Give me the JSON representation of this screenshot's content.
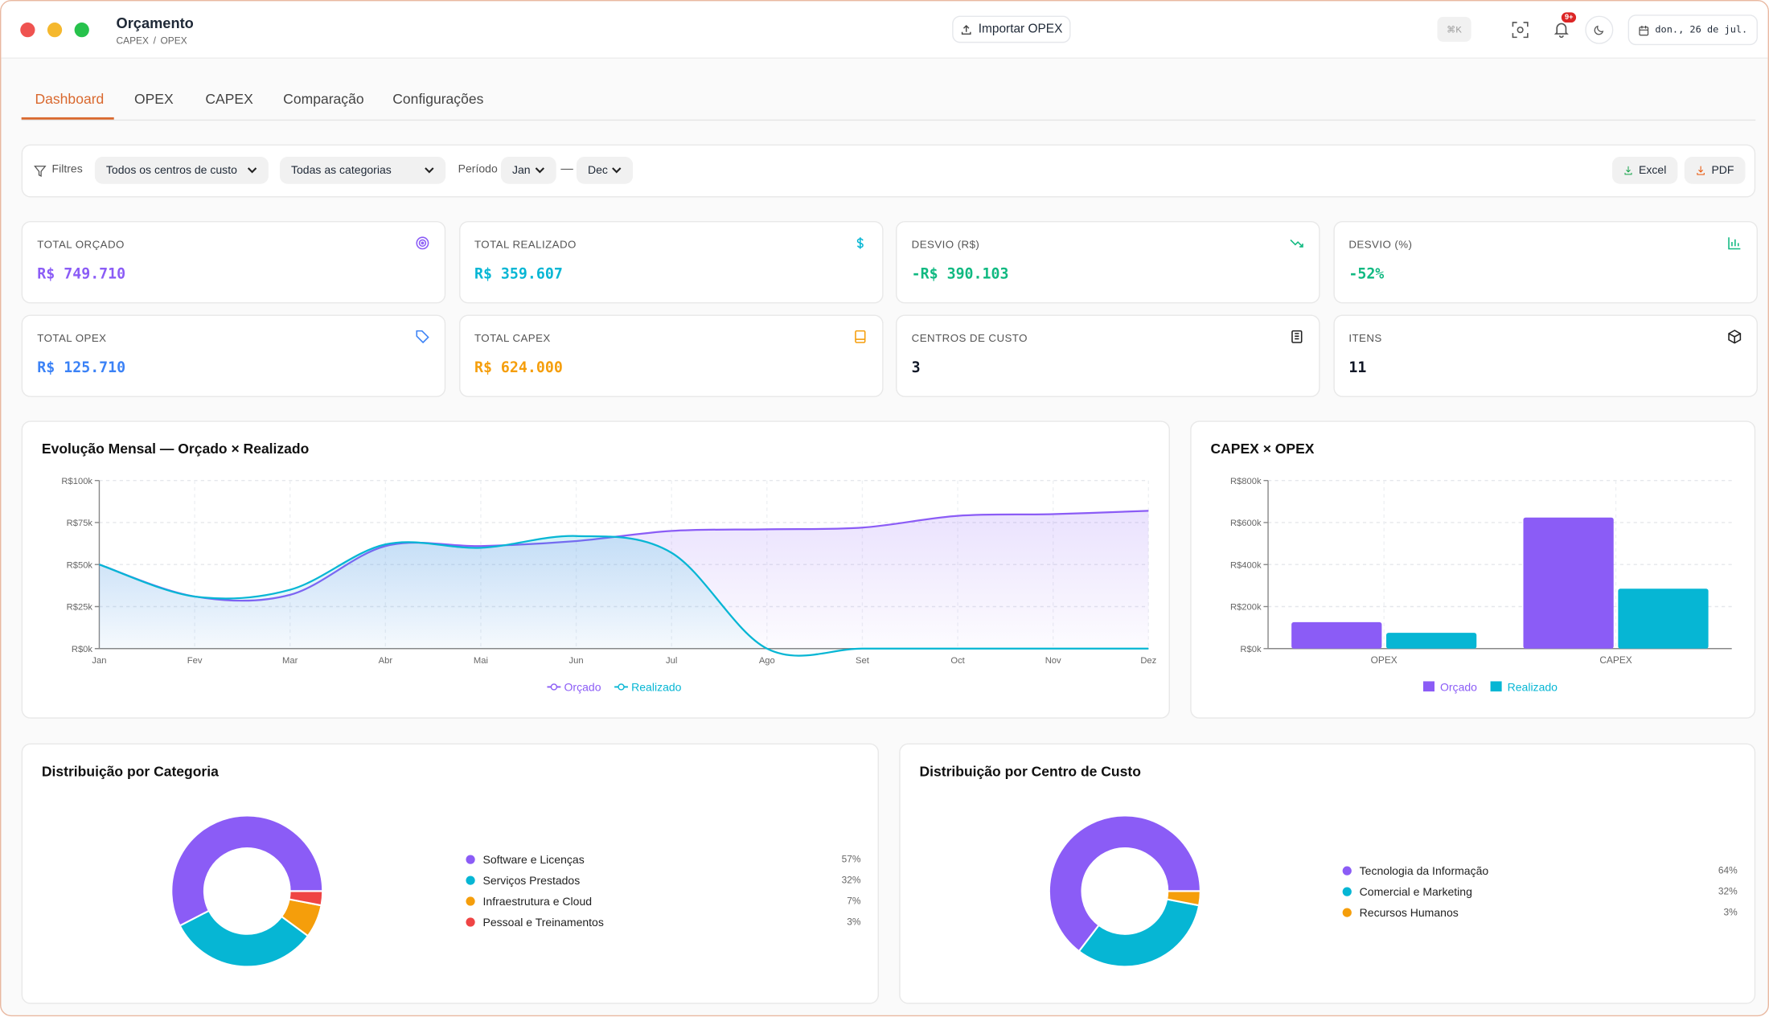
{
  "window": {
    "title": "Orçamento",
    "breadcrumb": [
      "CAPEX",
      "OPEX"
    ],
    "breadcrumb_separator": "/",
    "import_button": "Importar OPEX",
    "shortcut": "⌘K",
    "notification_badge": "9+",
    "date": "don., 26 de jul."
  },
  "tabs": [
    "Dashboard",
    "OPEX",
    "CAPEX",
    "Comparação",
    "Configurações"
  ],
  "active_tab": 0,
  "filters": {
    "label": "Filtres",
    "cost_center": "Todos os centros de custo",
    "category": "Todas as categorias",
    "period_label": "Período",
    "from": "Jan",
    "separator": "—",
    "to": "Dec",
    "export": [
      "Excel",
      "PDF"
    ]
  },
  "kpis": [
    {
      "label": "TOTAL ORÇADO",
      "value": "R$ 749.710",
      "color": "#8b5cf6"
    },
    {
      "label": "TOTAL REALIZADO",
      "value": "R$ 359.607",
      "color": "#06b6d4"
    },
    {
      "label": "DESVIO (R$)",
      "value": "-R$ 390.103",
      "color": "#10b981"
    },
    {
      "label": "DESVIO (%)",
      "value": "-52%",
      "color": "#10b981"
    },
    {
      "label": "TOTAL OPEX",
      "value": "R$ 125.710",
      "color": "#3b82f6"
    },
    {
      "label": "TOTAL CAPEX",
      "value": "R$ 624.000",
      "color": "#f59e0b"
    },
    {
      "label": "CENTROS DE CUSTO",
      "value": "3",
      "color": "#111827"
    },
    {
      "label": "ITENS",
      "value": "11",
      "color": "#111827"
    }
  ],
  "chart_data": [
    {
      "type": "line",
      "title": "Evolução Mensal — Orçado × Realizado",
      "categories": [
        "Jan",
        "Fev",
        "Mar",
        "Abr",
        "Mai",
        "Jun",
        "Jul",
        "Ago",
        "Set",
        "Oct",
        "Nov",
        "Dez"
      ],
      "series": [
        {
          "name": "Orçado",
          "color": "#8b5cf6",
          "values": [
            50,
            31,
            32,
            61,
            61,
            64,
            70,
            71,
            72,
            79,
            80,
            82
          ]
        },
        {
          "name": "Realizado",
          "color": "#06b6d4",
          "values": [
            50,
            31,
            35,
            62,
            60,
            67,
            57,
            0,
            0,
            0,
            0,
            0
          ]
        }
      ],
      "ylim": [
        0,
        100
      ],
      "yticks": [
        {
          "value": 0,
          "label": "R$0k"
        },
        {
          "value": 25,
          "label": "R$25k"
        },
        {
          "value": 50,
          "label": "R$50k"
        },
        {
          "value": 75,
          "label": "R$75k"
        },
        {
          "value": 100,
          "label": "R$100k"
        }
      ],
      "grid": true,
      "legend": "bottom"
    },
    {
      "type": "bar",
      "title": "CAPEX × OPEX",
      "categories": [
        "OPEX",
        "CAPEX"
      ],
      "series": [
        {
          "name": "Orçado",
          "color": "#8b5cf6",
          "values": [
            125.71,
            624
          ]
        },
        {
          "name": "Realizado",
          "color": "#06b6d4",
          "values": [
            75,
            285
          ]
        }
      ],
      "ylim": [
        0,
        800
      ],
      "yticks": [
        {
          "value": 0,
          "label": "R$0k"
        },
        {
          "value": 200,
          "label": "R$200k"
        },
        {
          "value": 400,
          "label": "R$400k"
        },
        {
          "value": 600,
          "label": "R$600k"
        },
        {
          "value": 800,
          "label": "R$800k"
        }
      ],
      "grid": true,
      "legend": "bottom"
    },
    {
      "type": "pie",
      "title": "Distribuição por Categoria",
      "categories": [
        "Software e Licenças",
        "Serviços Prestados",
        "Infraestrutura e Cloud",
        "Pessoal e Treinamentos"
      ],
      "values": [
        57,
        32,
        7,
        3
      ],
      "value_labels": [
        "57%",
        "32%",
        "7%",
        "3%"
      ],
      "colors": [
        "#8b5cf6",
        "#06b6d4",
        "#f59e0b",
        "#ef4444"
      ],
      "legend": "right"
    },
    {
      "type": "pie",
      "title": "Distribuição por Centro de Custo",
      "categories": [
        "Tecnologia da Informação",
        "Comercial e Marketing",
        "Recursos Humanos"
      ],
      "values": [
        64,
        32,
        3
      ],
      "value_labels": [
        "64%",
        "32%",
        "3%"
      ],
      "colors": [
        "#8b5cf6",
        "#06b6d4",
        "#f59e0b"
      ],
      "legend": "right"
    }
  ]
}
